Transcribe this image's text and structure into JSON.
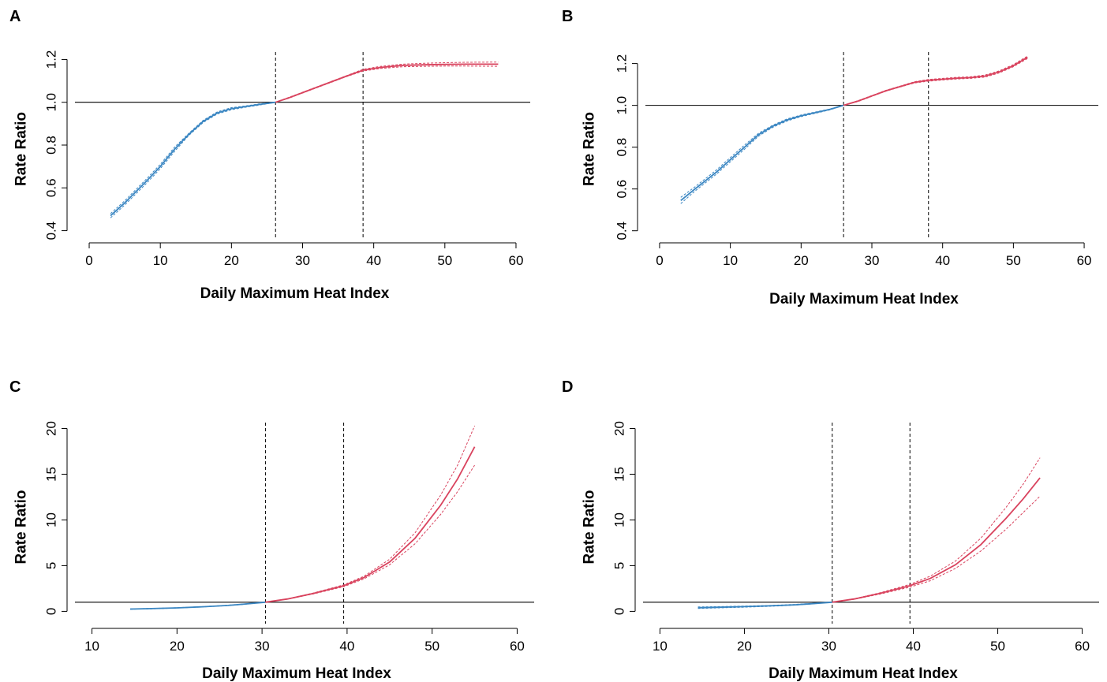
{
  "colors": {
    "cold": "#3a86c2",
    "hot": "#d9435e",
    "axis": "#000000"
  },
  "chart_data": [
    {
      "panel": "A",
      "type": "line",
      "xlabel": "Daily Maximum Heat Index",
      "ylabel": "Rate Ratio",
      "xlim": [
        -2,
        62
      ],
      "ylim": [
        0.38,
        1.22
      ],
      "xticks": [
        0,
        10,
        20,
        30,
        40,
        50,
        60
      ],
      "yticks": [
        0.4,
        0.6,
        0.8,
        1.0,
        1.2
      ],
      "ytick_labels": [
        "0.4",
        "0.6",
        "0.8",
        "1.0",
        "1.2"
      ],
      "reference_line": 1.0,
      "vlines": [
        26.2,
        38.5
      ],
      "series": [
        {
          "color": "cold",
          "x": [
            3,
            5,
            8,
            10,
            12,
            14,
            16,
            18,
            20,
            22,
            24,
            26.2
          ],
          "y": [
            0.47,
            0.53,
            0.63,
            0.7,
            0.78,
            0.85,
            0.91,
            0.95,
            0.97,
            0.98,
            0.99,
            1.0
          ],
          "ci_lower": [
            0.46,
            0.52,
            0.62,
            0.69,
            0.77,
            0.845,
            0.905,
            0.945,
            0.965,
            0.977,
            0.987,
            1.0
          ],
          "ci_upper": [
            0.48,
            0.54,
            0.64,
            0.71,
            0.79,
            0.855,
            0.915,
            0.955,
            0.975,
            0.983,
            0.993,
            1.0
          ]
        },
        {
          "color": "hot",
          "x": [
            26.2,
            28,
            30,
            32,
            34,
            36,
            38.5,
            41,
            44,
            47,
            50,
            53,
            57.5
          ],
          "y": [
            1.0,
            1.02,
            1.045,
            1.07,
            1.095,
            1.12,
            1.15,
            1.163,
            1.172,
            1.175,
            1.177,
            1.178,
            1.178
          ],
          "ci_lower": [
            1.0,
            1.018,
            1.043,
            1.068,
            1.093,
            1.118,
            1.146,
            1.158,
            1.166,
            1.168,
            1.169,
            1.169,
            1.168
          ],
          "ci_upper": [
            1.0,
            1.022,
            1.047,
            1.072,
            1.097,
            1.122,
            1.154,
            1.168,
            1.178,
            1.182,
            1.185,
            1.187,
            1.188
          ]
        }
      ]
    },
    {
      "panel": "B",
      "type": "line",
      "xlabel": "Daily Maximum Heat Index",
      "ylabel": "Rate Ratio",
      "xlim": [
        -2,
        62
      ],
      "ylim": [
        0.38,
        1.24
      ],
      "xticks": [
        0,
        10,
        20,
        30,
        40,
        50,
        60
      ],
      "yticks": [
        0.4,
        0.6,
        0.8,
        1.0,
        1.2
      ],
      "ytick_labels": [
        "0.4",
        "0.6",
        "0.8",
        "1.0",
        "1.2"
      ],
      "reference_line": 1.0,
      "vlines": [
        26,
        38
      ],
      "series": [
        {
          "color": "cold",
          "x": [
            3,
            5,
            8,
            10,
            12,
            14,
            16,
            18,
            20,
            22,
            24,
            26
          ],
          "y": [
            0.545,
            0.6,
            0.68,
            0.74,
            0.8,
            0.86,
            0.9,
            0.93,
            0.95,
            0.965,
            0.98,
            1.0
          ],
          "ci_lower": [
            0.53,
            0.59,
            0.67,
            0.73,
            0.79,
            0.853,
            0.895,
            0.925,
            0.946,
            0.962,
            0.978,
            1.0
          ],
          "ci_upper": [
            0.56,
            0.61,
            0.69,
            0.75,
            0.81,
            0.867,
            0.905,
            0.935,
            0.954,
            0.968,
            0.982,
            1.0
          ]
        },
        {
          "color": "hot",
          "x": [
            26,
            28,
            30,
            32,
            34,
            36,
            38,
            40,
            42,
            44,
            46,
            48,
            50,
            52
          ],
          "y": [
            1.0,
            1.02,
            1.045,
            1.07,
            1.09,
            1.11,
            1.12,
            1.125,
            1.13,
            1.133,
            1.14,
            1.16,
            1.19,
            1.23
          ],
          "ci_lower": [
            1.0,
            1.018,
            1.043,
            1.068,
            1.088,
            1.107,
            1.116,
            1.121,
            1.126,
            1.129,
            1.135,
            1.155,
            1.185,
            1.224
          ],
          "ci_upper": [
            1.0,
            1.022,
            1.047,
            1.072,
            1.092,
            1.113,
            1.124,
            1.129,
            1.134,
            1.137,
            1.145,
            1.165,
            1.195,
            1.236
          ]
        }
      ]
    },
    {
      "panel": "C",
      "type": "line",
      "xlabel": "Daily Maximum Heat Index",
      "ylabel": "Rate Ratio",
      "xlim": [
        8,
        62
      ],
      "ylim": [
        -1,
        20.3
      ],
      "xticks": [
        10,
        20,
        30,
        40,
        50,
        60
      ],
      "yticks": [
        0,
        5,
        10,
        15,
        20
      ],
      "ytick_labels": [
        "0",
        "5",
        "10",
        "15",
        "20"
      ],
      "reference_line": 1.0,
      "vlines": [
        30.4,
        39.6
      ],
      "series": [
        {
          "color": "cold",
          "x": [
            14.5,
            17,
            20,
            23,
            26,
            28,
            30.4
          ],
          "y": [
            0.25,
            0.3,
            0.38,
            0.5,
            0.65,
            0.8,
            1.0
          ],
          "ci_lower": [
            0.23,
            0.28,
            0.36,
            0.48,
            0.63,
            0.78,
            1.0
          ],
          "ci_upper": [
            0.27,
            0.32,
            0.4,
            0.52,
            0.67,
            0.82,
            1.0
          ]
        },
        {
          "color": "hot",
          "x": [
            30.4,
            33,
            36,
            39.6,
            42,
            45,
            48,
            51,
            53,
            55
          ],
          "y": [
            1.0,
            1.35,
            1.95,
            2.8,
            3.7,
            5.4,
            8.0,
            11.6,
            14.5,
            18.0
          ],
          "ci_lower": [
            1.0,
            1.33,
            1.9,
            2.7,
            3.55,
            5.1,
            7.4,
            10.6,
            13.1,
            16.0
          ],
          "ci_upper": [
            1.0,
            1.37,
            2.0,
            2.9,
            3.85,
            5.7,
            8.6,
            12.7,
            16.0,
            20.3
          ]
        }
      ]
    },
    {
      "panel": "D",
      "type": "line",
      "xlabel": "Daily Maximum Heat Index",
      "ylabel": "Rate Ratio",
      "xlim": [
        8,
        62
      ],
      "ylim": [
        -1,
        20.3
      ],
      "xticks": [
        10,
        20,
        30,
        40,
        50,
        60
      ],
      "yticks": [
        0,
        5,
        10,
        15,
        20
      ],
      "ytick_labels": [
        "0",
        "5",
        "10",
        "15",
        "20"
      ],
      "reference_line": 1.0,
      "vlines": [
        30.4,
        39.6
      ],
      "series": [
        {
          "color": "cold",
          "x": [
            14.5,
            17,
            20,
            23,
            26,
            28,
            30.4
          ],
          "y": [
            0.4,
            0.45,
            0.52,
            0.6,
            0.72,
            0.84,
            1.0
          ],
          "ci_lower": [
            0.32,
            0.38,
            0.46,
            0.55,
            0.68,
            0.81,
            1.0
          ],
          "ci_upper": [
            0.48,
            0.52,
            0.58,
            0.65,
            0.76,
            0.87,
            1.0
          ]
        },
        {
          "color": "hot",
          "x": [
            30.4,
            33,
            36,
            39.6,
            42,
            45,
            48,
            51,
            53,
            55
          ],
          "y": [
            1.0,
            1.35,
            1.95,
            2.8,
            3.6,
            5.1,
            7.3,
            10.2,
            12.3,
            14.6
          ],
          "ci_lower": [
            1.0,
            1.32,
            1.88,
            2.65,
            3.35,
            4.7,
            6.6,
            9.0,
            10.8,
            12.6
          ],
          "ci_upper": [
            1.0,
            1.38,
            2.02,
            2.95,
            3.85,
            5.5,
            8.0,
            11.4,
            13.9,
            16.8
          ]
        }
      ]
    }
  ]
}
